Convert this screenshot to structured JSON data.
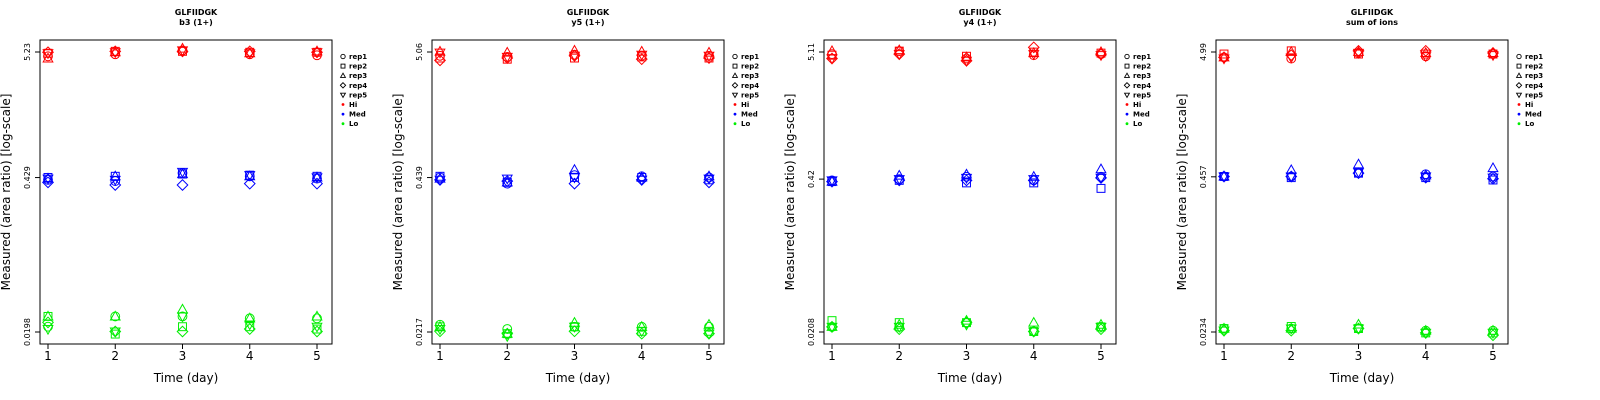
{
  "figure": {
    "xlabel": "Time (day)",
    "ylabel": "Measured (area ratio) [log-scale]"
  },
  "legend": {
    "shapes": [
      {
        "label": "rep1",
        "marker": "circle"
      },
      {
        "label": "rep2",
        "marker": "square"
      },
      {
        "label": "rep3",
        "marker": "triangle-up"
      },
      {
        "label": "rep4",
        "marker": "diamond"
      },
      {
        "label": "rep5",
        "marker": "triangle-down"
      }
    ],
    "levels": [
      {
        "label": "Hi",
        "color": "#ff0000"
      },
      {
        "label": "Med",
        "color": "#0000ff"
      },
      {
        "label": "Lo",
        "color": "#00ee00"
      }
    ]
  },
  "chart_data": [
    {
      "type": "scatter",
      "title": "GLFIIDGK",
      "subtitle": "b3 (1+)",
      "xlabel": "Time (day)",
      "ylabel": "Measured (area ratio) [log-scale]",
      "log_y": true,
      "yticks": [
        "5.23",
        "0.429",
        "0.0198"
      ],
      "ytick_values": [
        5.23,
        0.429,
        0.0198
      ],
      "xlim": [
        1,
        5
      ],
      "series": [
        {
          "name": "Hi",
          "color": "#ff0000",
          "reps": [
            [
              4.8,
              5.1,
              4.6,
              5.2,
              5.1
            ],
            [
              5.0,
              5.3,
              5.2,
              5.3,
              5.2
            ],
            [
              5.4,
              5.3,
              5.6,
              5.3,
              5.4
            ],
            [
              5.0,
              5.2,
              5.1,
              5.3,
              5.1
            ],
            [
              4.9,
              5.2,
              5.3,
              5.2,
              5.2
            ]
          ]
        },
        {
          "name": "Med",
          "color": "#0000ff",
          "reps": [
            [
              0.41,
              0.43,
              0.42,
              0.39,
              0.42
            ],
            [
              0.4,
              0.44,
              0.44,
              0.37,
              0.41
            ],
            [
              0.47,
              0.46,
              0.46,
              0.37,
              0.48
            ],
            [
              0.44,
              0.45,
              0.44,
              0.38,
              0.45
            ],
            [
              0.42,
              0.44,
              0.43,
              0.38,
              0.43
            ]
          ]
        },
        {
          "name": "Lo",
          "color": "#00ee00",
          "reps": [
            [
              0.022,
              0.027,
              0.027,
              0.024,
              0.021
            ],
            [
              0.027,
              0.019,
              0.027,
              0.02,
              0.02
            ],
            [
              0.027,
              0.022,
              0.031,
              0.02,
              0.027
            ],
            [
              0.026,
              0.022,
              0.026,
              0.021,
              0.023
            ],
            [
              0.026,
              0.021,
              0.027,
              0.02,
              0.022
            ]
          ]
        }
      ]
    },
    {
      "type": "scatter",
      "title": "GLFIIDGK",
      "subtitle": "y5 (1+)",
      "xlabel": "Time (day)",
      "ylabel": "Measured (area ratio) [log-scale]",
      "log_y": true,
      "yticks": [
        "5.06",
        "0.439",
        "0.0217"
      ],
      "ytick_values": [
        5.06,
        0.439,
        0.0217
      ],
      "xlim": [
        1,
        5
      ],
      "series": [
        {
          "name": "Hi",
          "color": "#ff0000",
          "reps": [
            [
              4.7,
              4.5,
              5.1,
              4.3,
              5.0
            ],
            [
              4.6,
              4.4,
              5.0,
              4.5,
              4.6
            ],
            [
              4.8,
              4.5,
              5.2,
              4.7,
              4.7
            ],
            [
              4.7,
              4.6,
              5.1,
              4.4,
              4.8
            ],
            [
              4.7,
              4.5,
              5.0,
              4.5,
              4.7
            ]
          ]
        },
        {
          "name": "Med",
          "color": "#0000ff",
          "reps": [
            [
              0.44,
              0.45,
              0.43,
              0.42,
              0.42
            ],
            [
              0.39,
              0.4,
              0.4,
              0.41,
              0.43
            ],
            [
              0.46,
              0.44,
              0.51,
              0.39,
              0.44
            ],
            [
              0.45,
              0.44,
              0.44,
              0.42,
              0.42
            ],
            [
              0.44,
              0.42,
              0.45,
              0.4,
              0.43
            ]
          ]
        },
        {
          "name": "Lo",
          "color": "#00ee00",
          "reps": [
            [
              0.025,
              0.024,
              0.024,
              0.022,
              0.023
            ],
            [
              0.023,
              0.021,
              0.021,
              0.021,
              0.02
            ],
            [
              0.024,
              0.024,
              0.026,
              0.022,
              0.024
            ],
            [
              0.024,
              0.022,
              0.024,
              0.021,
              0.022
            ],
            [
              0.024,
              0.022,
              0.025,
              0.021,
              0.021
            ]
          ]
        }
      ]
    },
    {
      "type": "scatter",
      "title": "GLFIIDGK",
      "subtitle": "y4 (1+)",
      "xlabel": "Time (day)",
      "ylabel": "Measured (area ratio) [log-scale]",
      "log_y": true,
      "yticks": [
        "5.11",
        "0.42",
        "0.0208"
      ],
      "ytick_values": [
        5.11,
        0.42,
        0.0208
      ],
      "xlim": [
        1,
        5
      ],
      "series": [
        {
          "name": "Hi",
          "color": "#ff0000",
          "reps": [
            [
              4.9,
              4.8,
              5.2,
              4.5,
              4.5
            ],
            [
              5.2,
              5.2,
              5.3,
              4.9,
              4.9
            ],
            [
              4.5,
              4.7,
              4.6,
              4.3,
              4.3
            ],
            [
              4.8,
              5.1,
              5.0,
              5.6,
              4.9
            ],
            [
              4.9,
              5.0,
              5.1,
              4.9,
              4.8
            ]
          ]
        },
        {
          "name": "Med",
          "color": "#0000ff",
          "reps": [
            [
              0.41,
              0.4,
              0.4,
              0.4,
              0.41
            ],
            [
              0.42,
              0.41,
              0.45,
              0.41,
              0.42
            ],
            [
              0.44,
              0.39,
              0.46,
              0.41,
              0.43
            ],
            [
              0.41,
              0.39,
              0.44,
              0.41,
              0.42
            ],
            [
              0.44,
              0.35,
              0.51,
              0.43,
              0.43
            ]
          ]
        },
        {
          "name": "Lo",
          "color": "#00ee00",
          "reps": [
            [
              0.023,
              0.026,
              0.023,
              0.023,
              0.023
            ],
            [
              0.023,
              0.025,
              0.024,
              0.022,
              0.023
            ],
            [
              0.025,
              0.025,
              0.026,
              0.025,
              0.024
            ],
            [
              0.021,
              0.021,
              0.025,
              0.021,
              0.021
            ],
            [
              0.023,
              0.023,
              0.024,
              0.022,
              0.023
            ]
          ]
        }
      ]
    },
    {
      "type": "scatter",
      "title": "GLFIIDGK",
      "subtitle": "sum of ions",
      "xlabel": "Time (day)",
      "ylabel": "Measured (area ratio) [log-scale]",
      "log_y": true,
      "yticks": [
        "4.99",
        "0.457",
        "0.0234"
      ],
      "ytick_values": [
        4.99,
        0.457,
        0.0234
      ],
      "xlim": [
        1,
        5
      ],
      "series": [
        {
          "name": "Hi",
          "color": "#ff0000",
          "reps": [
            [
              4.5,
              4.8,
              4.5,
              4.5,
              4.4
            ],
            [
              4.4,
              5.1,
              5.0,
              4.7,
              4.5
            ],
            [
              4.9,
              4.8,
              5.0,
              5.1,
              4.9
            ],
            [
              4.6,
              4.8,
              4.9,
              5.1,
              4.6
            ],
            [
              4.8,
              4.8,
              4.9,
              4.9,
              4.7
            ]
          ]
        },
        {
          "name": "Med",
          "color": "#0000ff",
          "reps": [
            [
              0.46,
              0.46,
              0.46,
              0.46,
              0.46
            ],
            [
              0.46,
              0.45,
              0.52,
              0.46,
              0.46
            ],
            [
              0.49,
              0.49,
              0.58,
              0.49,
              0.5
            ],
            [
              0.48,
              0.45,
              0.47,
              0.45,
              0.46
            ],
            [
              0.46,
              0.43,
              0.54,
              0.44,
              0.45
            ]
          ]
        },
        {
          "name": "Lo",
          "color": "#00ee00",
          "reps": [
            [
              0.025,
              0.025,
              0.025,
              0.024,
              0.024
            ],
            [
              0.025,
              0.026,
              0.025,
              0.024,
              0.025
            ],
            [
              0.025,
              0.025,
              0.027,
              0.025,
              0.025
            ],
            [
              0.024,
              0.023,
              0.024,
              0.023,
              0.023
            ],
            [
              0.024,
              0.023,
              0.024,
              0.022,
              0.023
            ]
          ]
        }
      ]
    }
  ]
}
